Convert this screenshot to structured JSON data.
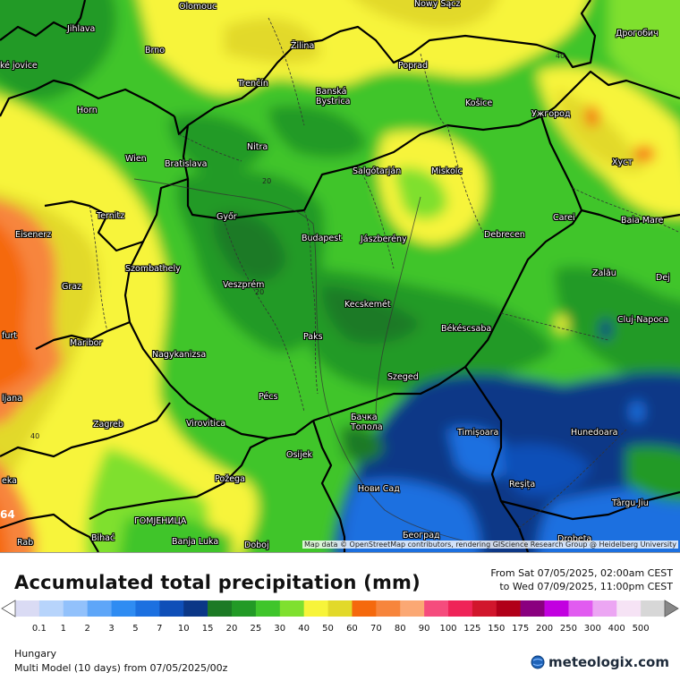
{
  "map": {
    "attribution": "Map data © OpenStreetMap contributors, rendering GIScience Research Group @ Heidelberg University",
    "contour_labels": [
      "40",
      "20",
      "20",
      "40",
      "64"
    ],
    "cities": [
      {
        "name": "Olomouc"
      },
      {
        "name": "Nowy Sącz"
      },
      {
        "name": "Jihlava"
      },
      {
        "name": "Brno"
      },
      {
        "name": "Žilina"
      },
      {
        "name": "Poprad"
      },
      {
        "name": "Дрогобич"
      },
      {
        "name": "Trenčín"
      },
      {
        "name": "Banská Bystrica"
      },
      {
        "name": "Košice"
      },
      {
        "name": "Ужгород"
      },
      {
        "name": "Horn"
      },
      {
        "name": "Wien"
      },
      {
        "name": "Bratislava"
      },
      {
        "name": "Nitra"
      },
      {
        "name": "Salgótarján"
      },
      {
        "name": "Miskolc"
      },
      {
        "name": "Хуст"
      },
      {
        "name": "Ternitz"
      },
      {
        "name": "Győr"
      },
      {
        "name": "Carei"
      },
      {
        "name": "Baia Mare"
      },
      {
        "name": "Eisenerz"
      },
      {
        "name": "Budapest"
      },
      {
        "name": "Jászberény"
      },
      {
        "name": "Debrecen"
      },
      {
        "name": "Szombathely"
      },
      {
        "name": "Zalău"
      },
      {
        "name": "Graz"
      },
      {
        "name": "Veszprém"
      },
      {
        "name": "Kecskemét"
      },
      {
        "name": "Dej"
      },
      {
        "name": "Cluj-Napoca"
      },
      {
        "name": "Maribor"
      },
      {
        "name": "Paks"
      },
      {
        "name": "Békéscsaba"
      },
      {
        "name": "furt"
      },
      {
        "name": "Nagykanizsa"
      },
      {
        "name": "Szeged"
      },
      {
        "name": "Pécs"
      },
      {
        "name": "ljana"
      },
      {
        "name": "Virovitica"
      },
      {
        "name": "Бачка Топола"
      },
      {
        "name": "Timișoara"
      },
      {
        "name": "Hunedoara"
      },
      {
        "name": "Zagreb"
      },
      {
        "name": "Osijek"
      },
      {
        "name": "Požega"
      },
      {
        "name": "Нови Сад"
      },
      {
        "name": "Reșița"
      },
      {
        "name": "Târgu Jiu"
      },
      {
        "name": "ГОМЈЕНИЦА"
      },
      {
        "name": "Bihać"
      },
      {
        "name": "Banja Luka"
      },
      {
        "name": "Doboj"
      },
      {
        "name": "Београд"
      },
      {
        "name": "Drobeta"
      },
      {
        "name": "Rab"
      },
      {
        "name": "eka"
      },
      {
        "name": "ské jovice"
      }
    ]
  },
  "legend": {
    "title": "Accumulated total precipitation (mm)",
    "date_from": "From Sat 07/05/2025, 02:00am CEST",
    "date_to": "to Wed 07/09/2025, 11:00pm CEST",
    "ticks": [
      "0.1",
      "1",
      "2",
      "3",
      "5",
      "7",
      "10",
      "15",
      "20",
      "25",
      "30",
      "40",
      "50",
      "60",
      "70",
      "80",
      "90",
      "100",
      "125",
      "150",
      "175",
      "200",
      "250",
      "300",
      "400",
      "500"
    ],
    "colors": [
      "#dadbf4",
      "#b7d4fb",
      "#92c1fb",
      "#5ea6f8",
      "#2f8cf2",
      "#1c70e0",
      "#0f4fb8",
      "#0b3787",
      "#1c7a25",
      "#229a26",
      "#3fc52b",
      "#7fe02f",
      "#f7f43a",
      "#e2d92a",
      "#f5690d",
      "#f7853c",
      "#fba874",
      "#f54c7d",
      "#ef2458",
      "#d1162c",
      "#b10019",
      "#8a007f",
      "#c200e0",
      "#e15bf0",
      "#eca6f3",
      "#f6e3f5",
      "#d7d7d7"
    ],
    "region": "Hungary",
    "model_line": "Multi Model (10 days) from 07/05/2025/00z"
  },
  "brand": {
    "name": "meteologix.com"
  }
}
